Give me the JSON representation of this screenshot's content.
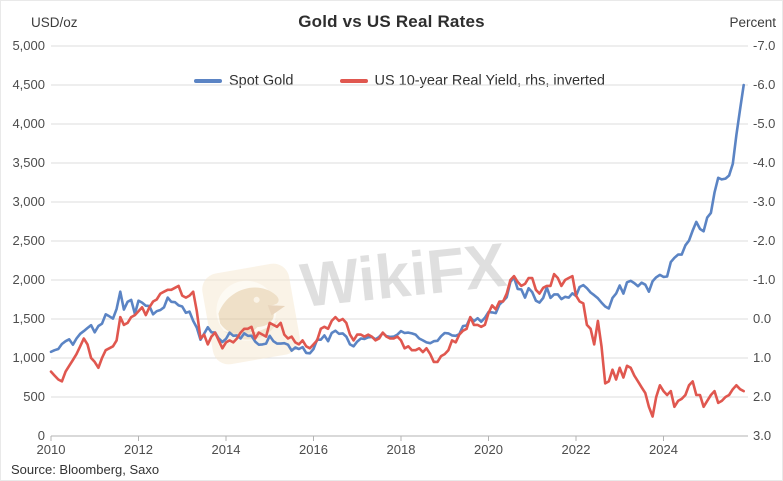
{
  "header": {
    "left_axis_title": "USD/oz",
    "title": "Gold vs US Real Rates",
    "right_axis_title": "Percent"
  },
  "legend": [
    {
      "label": "Spot Gold",
      "color": "#5b84c4"
    },
    {
      "label": "US 10-year Real Yield, rhs, inverted",
      "color": "#e0574f"
    }
  ],
  "watermark": {
    "text": "WikiFX",
    "logo": "wikifx-eagle-logo"
  },
  "source": "Source: Bloomberg, Saxo",
  "colors": {
    "gold_line": "#5b84c4",
    "yield_line": "#e0574f",
    "gridline": "#dcdcdc",
    "axis_line": "#b3b3b3",
    "tick_text": "#4d4d4d"
  },
  "chart_data": {
    "type": "line",
    "title": "Gold vs US Real Rates",
    "grid": "horizontal",
    "legend_position": "top-center",
    "x_ticks": [
      2010,
      2012,
      2014,
      2016,
      2018,
      2020,
      2022,
      2024
    ],
    "x_range": [
      2010,
      2025.95
    ],
    "left_axis": {
      "title": "USD/oz",
      "tick_labels": [
        "5,000",
        "4,500",
        "4,000",
        "3,500",
        "3,000",
        "2,500",
        "2,000",
        "1,500",
        "1,000",
        "500",
        "0"
      ],
      "range": [
        0,
        5000
      ],
      "inverted": false
    },
    "right_axis": {
      "title": "Percent",
      "tick_labels": [
        "-7.0",
        "-6.0",
        "-5.0",
        "-4.0",
        "-3.0",
        "-2.0",
        "-1.0",
        "0.0",
        "1.0",
        "2.0",
        "3.0"
      ],
      "range": [
        -7.0,
        3.0
      ],
      "inverted": true
    },
    "series": [
      {
        "name": "Spot Gold",
        "axis": "left",
        "color": "#5b84c4",
        "start_year": 2010.0,
        "step_years": 0.0833333,
        "values": [
          1080,
          1100,
          1115,
          1180,
          1215,
          1240,
          1170,
          1250,
          1310,
          1345,
          1385,
          1420,
          1330,
          1410,
          1440,
          1560,
          1535,
          1505,
          1630,
          1850,
          1620,
          1720,
          1745,
          1565,
          1735,
          1710,
          1670,
          1665,
          1560,
          1600,
          1615,
          1650,
          1775,
          1720,
          1715,
          1675,
          1660,
          1580,
          1595,
          1475,
          1390,
          1235,
          1310,
          1395,
          1330,
          1325,
          1250,
          1205,
          1245,
          1325,
          1285,
          1290,
          1250,
          1315,
          1285,
          1285,
          1210,
          1170,
          1175,
          1185,
          1285,
          1215,
          1185,
          1185,
          1190,
          1170,
          1095,
          1135,
          1115,
          1140,
          1065,
          1060,
          1115,
          1235,
          1235,
          1290,
          1215,
          1320,
          1350,
          1310,
          1315,
          1275,
          1175,
          1150,
          1210,
          1250,
          1245,
          1265,
          1270,
          1240,
          1270,
          1320,
          1280,
          1270,
          1275,
          1300,
          1345,
          1320,
          1325,
          1315,
          1300,
          1250,
          1225,
          1200,
          1190,
          1215,
          1220,
          1280,
          1320,
          1315,
          1290,
          1285,
          1305,
          1410,
          1415,
          1520,
          1470,
          1510,
          1465,
          1515,
          1590,
          1585,
          1575,
          1685,
          1730,
          1780,
          1975,
          2035,
          1885,
          1880,
          1775,
          1895,
          1845,
          1735,
          1710,
          1770,
          1905,
          1770,
          1815,
          1815,
          1755,
          1785,
          1775,
          1830,
          1795,
          1910,
          1935,
          1895,
          1840,
          1805,
          1765,
          1710,
          1660,
          1635,
          1770,
          1825,
          1930,
          1825,
          1970,
          1990,
          1960,
          1920,
          1965,
          1940,
          1850,
          1985,
          2035,
          2065,
          2040,
          2045,
          2230,
          2285,
          2325,
          2325,
          2445,
          2505,
          2635,
          2745,
          2655,
          2625,
          2800,
          2860,
          3120,
          3310,
          3290,
          3300,
          3340,
          3490,
          3860,
          4190,
          4500
        ]
      },
      {
        "name": "US 10-year Real Yield, rhs, inverted",
        "axis": "right",
        "color": "#e0574f",
        "start_year": 2010.0,
        "step_years": 0.0833333,
        "values": [
          1.35,
          1.45,
          1.55,
          1.6,
          1.35,
          1.2,
          1.05,
          0.9,
          0.7,
          0.5,
          0.65,
          1.0,
          1.1,
          1.25,
          1.0,
          0.8,
          0.75,
          0.7,
          0.55,
          -0.05,
          0.15,
          0.1,
          -0.05,
          -0.1,
          -0.2,
          -0.3,
          -0.1,
          -0.3,
          -0.45,
          -0.5,
          -0.65,
          -0.7,
          -0.75,
          -0.75,
          -0.8,
          -0.85,
          -0.6,
          -0.55,
          -0.6,
          -0.7,
          -0.2,
          0.5,
          0.4,
          0.65,
          0.45,
          0.35,
          0.55,
          0.75,
          0.6,
          0.55,
          0.6,
          0.5,
          0.35,
          0.25,
          0.25,
          0.2,
          0.5,
          0.35,
          0.4,
          0.45,
          0.1,
          0.15,
          0.2,
          0.1,
          0.4,
          0.5,
          0.45,
          0.6,
          0.65,
          0.55,
          0.7,
          0.75,
          0.65,
          0.55,
          0.25,
          0.2,
          0.25,
          0.05,
          -0.05,
          0.05,
          0.0,
          0.1,
          0.4,
          0.55,
          0.4,
          0.4,
          0.45,
          0.4,
          0.45,
          0.55,
          0.5,
          0.35,
          0.45,
          0.5,
          0.5,
          0.45,
          0.55,
          0.75,
          0.7,
          0.8,
          0.8,
          0.75,
          0.85,
          0.75,
          0.9,
          1.1,
          1.1,
          0.95,
          0.9,
          0.8,
          0.55,
          0.6,
          0.4,
          0.3,
          0.25,
          -0.05,
          0.15,
          0.15,
          0.2,
          0.15,
          -0.15,
          -0.35,
          -0.25,
          -0.45,
          -0.45,
          -0.65,
          -1.0,
          -1.1,
          -0.95,
          -0.85,
          -0.9,
          -1.05,
          -1.05,
          -0.75,
          -0.65,
          -0.8,
          -0.85,
          -0.85,
          -1.15,
          -1.05,
          -0.85,
          -1.0,
          -1.05,
          -1.1,
          -0.6,
          -0.45,
          -0.4,
          0.15,
          0.25,
          0.65,
          0.05,
          0.7,
          1.65,
          1.6,
          1.3,
          1.55,
          1.25,
          1.5,
          1.2,
          1.25,
          1.45,
          1.6,
          1.75,
          1.9,
          2.25,
          2.5,
          2.0,
          1.7,
          1.85,
          1.95,
          1.85,
          2.25,
          2.1,
          2.05,
          1.95,
          1.7,
          1.6,
          1.95,
          1.95,
          2.25,
          2.1,
          1.95,
          1.85,
          2.15,
          2.1,
          2.0,
          1.95,
          1.8,
          1.7,
          1.8,
          1.85
        ]
      }
    ]
  }
}
